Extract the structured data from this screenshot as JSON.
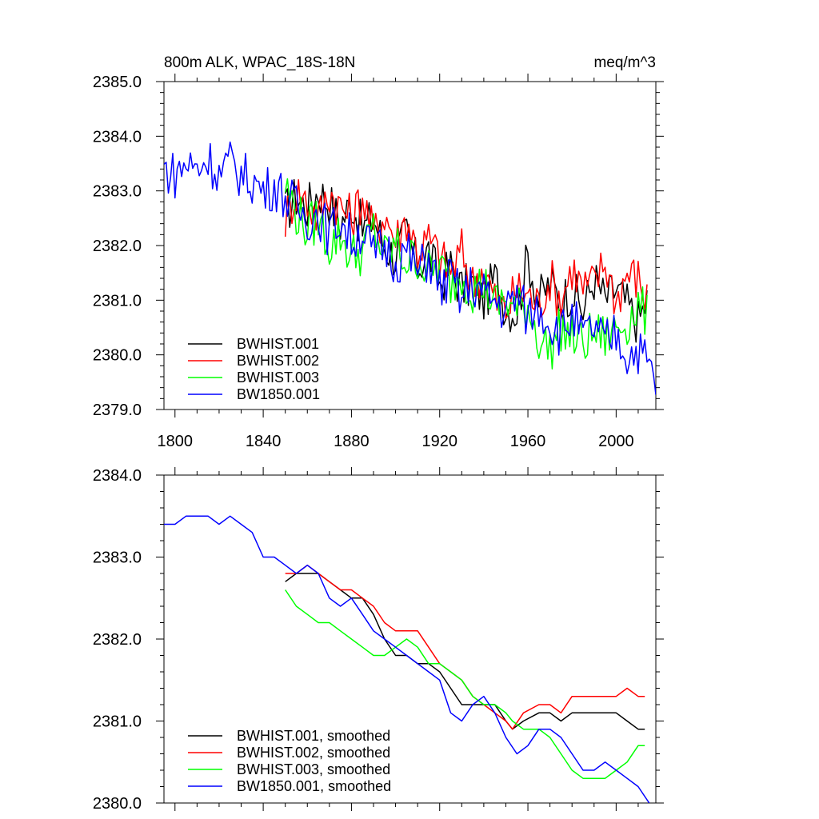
{
  "chart_data": [
    {
      "type": "line",
      "title_left": "800m ALK, WPAC_18S-18N",
      "title_right": "meq/m^3",
      "xlim": [
        1795,
        2018
      ],
      "ylim": [
        2379.0,
        2385.0
      ],
      "x_ticks": [
        1800,
        1840,
        1880,
        1920,
        1960,
        2000
      ],
      "x_tick_labels": [
        "1800",
        "1840",
        "1880",
        "1920",
        "1960",
        "2000"
      ],
      "y_ticks": [
        2379.0,
        2380.0,
        2381.0,
        2382.0,
        2383.0,
        2384.0,
        2385.0
      ],
      "y_tick_labels": [
        "2379.0",
        "2380.0",
        "2381.0",
        "2382.0",
        "2383.0",
        "2384.0",
        "2385.0"
      ],
      "legend_position": "bottom-left",
      "series": [
        {
          "name": "BWHIST.001",
          "color": "#000000",
          "step": 5,
          "x": [
            1850,
            1855,
            1860,
            1865,
            1870,
            1875,
            1880,
            1885,
            1890,
            1895,
            1900,
            1905,
            1910,
            1915,
            1920,
            1925,
            1930,
            1935,
            1940,
            1945,
            1950,
            1955,
            1960,
            1965,
            1970,
            1975,
            1980,
            1985,
            1990,
            1995,
            2000,
            2005,
            2010,
            2014
          ],
          "y": [
            2382.6,
            2382.9,
            2382.7,
            2383.0,
            2382.8,
            2382.4,
            2382.8,
            2382.3,
            2382.5,
            2382.0,
            2381.8,
            2382.2,
            2381.6,
            2381.9,
            2381.3,
            2381.6,
            2381.2,
            2381.3,
            2381.0,
            2381.4,
            2380.9,
            2380.8,
            2381.8,
            2381.0,
            2381.3,
            2381.0,
            2381.2,
            2380.8,
            2381.4,
            2381.0,
            2381.2,
            2380.9,
            2380.6,
            2381.0
          ]
        },
        {
          "name": "BWHIST.002",
          "color": "#ff0000",
          "step": 5,
          "x": [
            1850,
            1855,
            1860,
            1865,
            1870,
            1875,
            1880,
            1885,
            1890,
            1895,
            1900,
            1905,
            1910,
            1915,
            1920,
            1925,
            1930,
            1935,
            1940,
            1945,
            1950,
            1955,
            1960,
            1965,
            1970,
            1975,
            1980,
            1985,
            1990,
            1995,
            2000,
            2005,
            2010,
            2014
          ],
          "y": [
            2382.5,
            2383.0,
            2382.8,
            2382.5,
            2383.0,
            2382.7,
            2382.5,
            2382.9,
            2382.2,
            2382.6,
            2382.1,
            2382.5,
            2381.9,
            2382.1,
            2381.8,
            2381.5,
            2381.9,
            2381.3,
            2381.6,
            2381.0,
            2380.8,
            2381.2,
            2381.1,
            2380.9,
            2381.4,
            2381.0,
            2381.6,
            2381.2,
            2381.3,
            2381.7,
            2381.0,
            2381.5,
            2381.4,
            2381.0
          ]
        },
        {
          "name": "BWHIST.003",
          "color": "#00ff00",
          "step": 5,
          "x": [
            1850,
            1855,
            1860,
            1865,
            1870,
            1875,
            1880,
            1885,
            1890,
            1895,
            1900,
            1905,
            1910,
            1915,
            1920,
            1925,
            1930,
            1935,
            1940,
            1945,
            1950,
            1955,
            1960,
            1965,
            1970,
            1975,
            1980,
            1985,
            1990,
            1995,
            2000,
            2005,
            2010,
            2014
          ],
          "y": [
            2383.1,
            2382.6,
            2382.3,
            2382.5,
            2382.0,
            2382.2,
            2381.8,
            2381.9,
            2382.3,
            2381.8,
            2382.0,
            2381.7,
            2381.8,
            2381.5,
            2381.6,
            2381.3,
            2381.5,
            2381.2,
            2381.3,
            2380.9,
            2381.0,
            2380.8,
            2380.9,
            2380.3,
            2380.1,
            2380.5,
            2380.3,
            2380.2,
            2380.4,
            2380.3,
            2380.5,
            2380.6,
            2380.9,
            2380.7
          ]
        },
        {
          "name": "BW1850.001",
          "color": "#0000ff",
          "step": 5,
          "x": [
            1795,
            1800,
            1805,
            1810,
            1815,
            1820,
            1825,
            1830,
            1835,
            1840,
            1845,
            1850,
            1855,
            1860,
            1865,
            1870,
            1875,
            1880,
            1885,
            1890,
            1895,
            1900,
            1905,
            1910,
            1915,
            1920,
            1925,
            1930,
            1935,
            1940,
            1945,
            1950,
            1955,
            1960,
            1965,
            1970,
            1975,
            1980,
            1985,
            1990,
            1995,
            2000,
            2005,
            2010,
            2015,
            2018
          ],
          "y": [
            2383.4,
            2383.3,
            2383.5,
            2383.4,
            2383.6,
            2383.3,
            2383.5,
            2383.3,
            2383.2,
            2383.0,
            2383.1,
            2382.9,
            2382.7,
            2382.5,
            2382.6,
            2382.2,
            2382.5,
            2382.1,
            2382.3,
            2381.8,
            2382.0,
            2381.7,
            2381.9,
            2381.5,
            2381.8,
            2381.2,
            2381.4,
            2381.0,
            2381.3,
            2381.1,
            2381.0,
            2380.8,
            2381.1,
            2380.7,
            2380.9,
            2380.6,
            2380.4,
            2380.7,
            2380.3,
            2380.5,
            2380.2,
            2380.4,
            2380.0,
            2380.1,
            2379.8,
            2379.5
          ]
        }
      ]
    },
    {
      "type": "line",
      "xlim": [
        1795,
        2018
      ],
      "ylim": [
        2380.0,
        2384.0
      ],
      "x_ticks": [
        1800,
        1840,
        1880,
        1920,
        1960,
        2000
      ],
      "y_ticks": [
        2380.0,
        2381.0,
        2382.0,
        2383.0,
        2384.0
      ],
      "y_tick_labels": [
        "2380.0",
        "2381.0",
        "2382.0",
        "2383.0",
        "2384.0"
      ],
      "legend_position": "bottom-left",
      "series": [
        {
          "name": "BWHIST.001, smoothed",
          "color": "#000000",
          "x": [
            1850,
            1855,
            1860,
            1865,
            1870,
            1875,
            1880,
            1885,
            1890,
            1895,
            1900,
            1905,
            1910,
            1915,
            1920,
            1925,
            1930,
            1935,
            1940,
            1945,
            1950,
            1953,
            1958,
            1965,
            1970,
            1975,
            1980,
            1985,
            1990,
            1995,
            2000,
            2005,
            2010,
            2013
          ],
          "y": [
            2382.7,
            2382.8,
            2382.8,
            2382.8,
            2382.7,
            2382.6,
            2382.5,
            2382.5,
            2382.3,
            2382.0,
            2381.8,
            2381.8,
            2381.7,
            2381.7,
            2381.6,
            2381.4,
            2381.2,
            2381.2,
            2381.2,
            2381.2,
            2381.0,
            2380.9,
            2381.0,
            2381.1,
            2381.1,
            2381.0,
            2381.1,
            2381.1,
            2381.1,
            2381.1,
            2381.1,
            2381.0,
            2380.9,
            2380.9
          ]
        },
        {
          "name": "BWHIST.002, smoothed",
          "color": "#ff0000",
          "x": [
            1850,
            1855,
            1860,
            1865,
            1870,
            1875,
            1880,
            1885,
            1890,
            1895,
            1900,
            1905,
            1910,
            1915,
            1920,
            1925,
            1930,
            1935,
            1940,
            1945,
            1950,
            1953,
            1958,
            1965,
            1970,
            1975,
            1980,
            1985,
            1990,
            1995,
            2000,
            2005,
            2010,
            2013
          ],
          "y": [
            2382.8,
            2382.8,
            2382.9,
            2382.8,
            2382.7,
            2382.6,
            2382.6,
            2382.5,
            2382.4,
            2382.2,
            2382.1,
            2382.1,
            2382.1,
            2381.9,
            2381.7,
            2381.6,
            2381.5,
            2381.3,
            2381.2,
            2381.1,
            2381.0,
            2380.9,
            2381.1,
            2381.2,
            2381.2,
            2381.1,
            2381.3,
            2381.3,
            2381.3,
            2381.3,
            2381.3,
            2381.4,
            2381.3,
            2381.3
          ]
        },
        {
          "name": "BWHIST.003, smoothed",
          "color": "#00ff00",
          "x": [
            1850,
            1855,
            1860,
            1865,
            1870,
            1875,
            1880,
            1885,
            1890,
            1895,
            1900,
            1905,
            1910,
            1915,
            1920,
            1925,
            1930,
            1935,
            1940,
            1945,
            1950,
            1953,
            1958,
            1965,
            1970,
            1975,
            1980,
            1985,
            1990,
            1995,
            2000,
            2005,
            2010,
            2013
          ],
          "y": [
            2382.6,
            2382.4,
            2382.3,
            2382.2,
            2382.2,
            2382.1,
            2382.0,
            2381.9,
            2381.8,
            2381.8,
            2381.9,
            2382.0,
            2381.9,
            2381.7,
            2381.7,
            2381.6,
            2381.5,
            2381.3,
            2381.2,
            2381.2,
            2381.1,
            2381.0,
            2380.9,
            2380.9,
            2380.8,
            2380.6,
            2380.4,
            2380.3,
            2380.3,
            2380.3,
            2380.4,
            2380.5,
            2380.7,
            2380.7
          ]
        },
        {
          "name": "BW1850.001, smoothed",
          "color": "#0000ff",
          "x": [
            1795,
            1800,
            1805,
            1810,
            1815,
            1820,
            1825,
            1830,
            1835,
            1840,
            1845,
            1850,
            1855,
            1860,
            1865,
            1870,
            1875,
            1880,
            1885,
            1890,
            1895,
            1900,
            1905,
            1910,
            1915,
            1920,
            1925,
            1930,
            1935,
            1940,
            1945,
            1950,
            1955,
            1960,
            1965,
            1970,
            1975,
            1980,
            1985,
            1990,
            1995,
            2000,
            2005,
            2010,
            2015
          ],
          "y": [
            2383.4,
            2383.4,
            2383.5,
            2383.5,
            2383.5,
            2383.4,
            2383.5,
            2383.4,
            2383.3,
            2383.0,
            2383.0,
            2382.9,
            2382.8,
            2382.9,
            2382.8,
            2382.5,
            2382.4,
            2382.5,
            2382.3,
            2382.1,
            2382.0,
            2381.9,
            2381.8,
            2381.7,
            2381.6,
            2381.5,
            2381.1,
            2381.0,
            2381.2,
            2381.3,
            2381.1,
            2380.8,
            2380.6,
            2380.7,
            2380.9,
            2380.9,
            2380.8,
            2380.6,
            2380.4,
            2380.4,
            2380.5,
            2380.4,
            2380.3,
            2380.2,
            2380.0
          ]
        }
      ]
    }
  ]
}
